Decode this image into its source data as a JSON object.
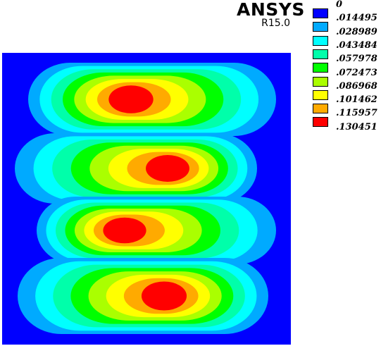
{
  "header": {
    "brand": "ANSYS",
    "version": "R15.0"
  },
  "legend": {
    "items": [
      {
        "label": "0",
        "color": "#0000ff"
      },
      {
        "label": ".014495",
        "color": "#00aaff"
      },
      {
        "label": ".028989",
        "color": "#00ffff"
      },
      {
        "label": ".043484",
        "color": "#00ffaa"
      },
      {
        "label": ".057978",
        "color": "#00ff00"
      },
      {
        "label": ".072473",
        "color": "#aaff00"
      },
      {
        "label": ".086968",
        "color": "#ffff00"
      },
      {
        "label": ".101462",
        "color": "#ffaa00"
      },
      {
        "label": ".115957",
        "color": "#ff0000"
      },
      {
        "label": ".130451",
        "color": null
      }
    ]
  },
  "contour_plot": {
    "background_color": "#0000ff",
    "lobe_count": 4
  }
}
